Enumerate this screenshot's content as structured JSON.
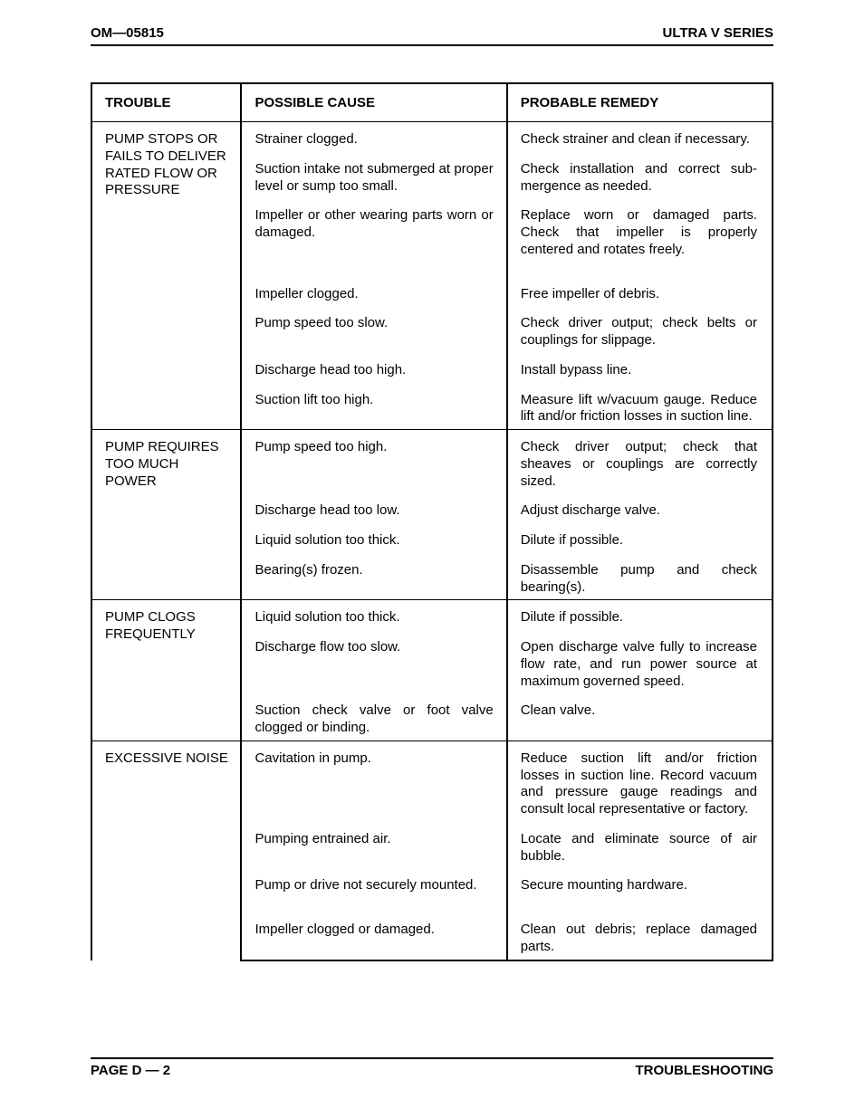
{
  "header": {
    "left": "OM—05815",
    "right": "ULTRA V SERIES"
  },
  "footer": {
    "left": "PAGE D — 2",
    "right": "TROUBLESHOOTING"
  },
  "columns": {
    "trouble": "TROUBLE",
    "cause": "POSSIBLE CAUSE",
    "remedy": "PROBABLE REMEDY"
  },
  "sections": [
    {
      "trouble": "PUMP STOPS OR FAILS TO DELIVER RATED FLOW OR PRESSURE",
      "rows": [
        {
          "cause": "Strainer clogged.",
          "remedy": "Check strainer and clean if neces­sary."
        },
        {
          "cause": "Suction intake not submerged at proper level or sump too small.",
          "remedy": "Check installation and correct sub­mergence as needed."
        },
        {
          "cause": "Impeller or other wearing parts worn or damaged.",
          "remedy": "Replace worn or damaged parts. Check that impeller is properly centered and rotates freely."
        },
        {
          "cause": "Impeller clogged.",
          "remedy": "Free impeller of debris."
        },
        {
          "cause": "Pump speed too slow.",
          "remedy": "Check driver output; check belts or couplings for slippage."
        },
        {
          "cause": "Discharge head too high.",
          "remedy": "Install bypass line."
        },
        {
          "cause": "Suction lift too high.",
          "remedy": "Measure lift w/vacuum gauge. Re­duce lift and/or friction losses in suction line."
        }
      ]
    },
    {
      "trouble": "PUMP REQUIRES TOO MUCH POWER",
      "rows": [
        {
          "cause": "Pump speed too high.",
          "remedy": "Check driver output; check that sheaves or couplings are cor­rectly sized."
        },
        {
          "cause": "Discharge head too low.",
          "remedy": "Adjust discharge valve."
        },
        {
          "cause": "Liquid solution too thick.",
          "remedy": "Dilute if possible."
        },
        {
          "cause": "Bearing(s) frozen.",
          "remedy": "Disassemble pump and check bearing(s)."
        }
      ]
    },
    {
      "trouble": "PUMP CLOGS FREQUENTLY",
      "rows": [
        {
          "cause": "Liquid solution too thick.",
          "remedy": "Dilute if possible."
        },
        {
          "cause": "Discharge flow too slow.",
          "remedy": "Open discharge valve fully to in­crease flow rate, and run power source at maximum governed speed."
        },
        {
          "cause": "Suction check valve or foot valve clogged or binding.",
          "remedy": "Clean valve."
        }
      ]
    },
    {
      "trouble": "EXCESSIVE NOISE",
      "rows": [
        {
          "cause": "Cavitation in pump.",
          "remedy": "Reduce suction lift and/or friction losses in suction line. Record vac­uum and pressure gauge readings and consult local representative or factory."
        },
        {
          "cause": "Pumping entrained air.",
          "remedy": "Locate and eliminate source of air bubble."
        },
        {
          "cause": "Pump or drive not securely mounted.",
          "remedy": "Secure mounting hardware."
        },
        {
          "cause": "Impeller clogged or damaged.",
          "remedy": "Clean out debris; replace dam­aged parts."
        }
      ]
    }
  ]
}
